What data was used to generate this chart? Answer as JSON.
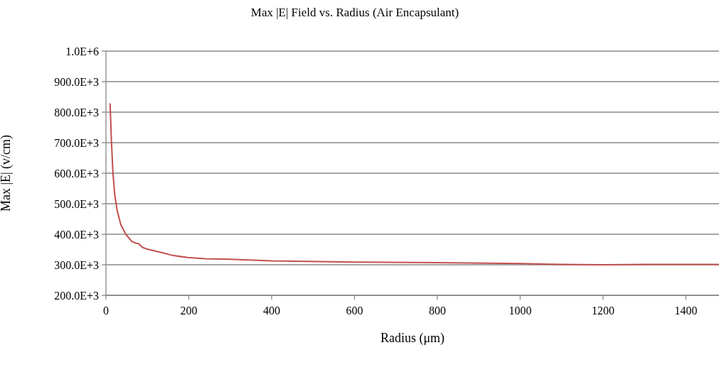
{
  "chart_data": {
    "type": "line",
    "title": "Max |E| Field vs. Radius (Air Encapsulant)",
    "xlabel": "Radius (μm)",
    "ylabel": "Max |E| (v/cm)",
    "x": [
      10,
      13,
      17,
      21,
      27,
      36,
      48,
      62,
      71,
      79,
      88,
      100,
      134,
      163,
      198,
      240,
      300,
      400,
      600,
      800,
      1000,
      1100,
      1200,
      1300,
      1480
    ],
    "series": [
      {
        "color": "#c0504d",
        "values": [
          829000,
          710000,
          598000,
          532000,
          478000,
          431000,
          400000,
          377000,
          371000,
          369000,
          357000,
          351000,
          340000,
          330000,
          324000,
          320000,
          318000,
          313000,
          309000,
          307000,
          304000,
          301000,
          300000,
          301000,
          301000
        ]
      }
    ],
    "xlim": [
      0,
      1480
    ],
    "xticks": [
      0,
      200,
      400,
      600,
      800,
      1000,
      1200,
      1400
    ],
    "ylim": [
      200000,
      1000000
    ],
    "yticks": [
      {
        "value": 200000,
        "label": "200.0E+3"
      },
      {
        "value": 300000,
        "label": "300.0E+3"
      },
      {
        "value": 400000,
        "label": "400.0E+3"
      },
      {
        "value": 500000,
        "label": "500.0E+3"
      },
      {
        "value": 600000,
        "label": "600.0E+3"
      },
      {
        "value": 700000,
        "label": "700.0E+3"
      },
      {
        "value": 800000,
        "label": "800.0E+3"
      },
      {
        "value": 900000,
        "label": "900.0E+3"
      },
      {
        "value": 1000000,
        "label": "1.0E+6"
      }
    ],
    "grid": "y",
    "legend": false,
    "marker": "none",
    "line_style": "solid"
  }
}
